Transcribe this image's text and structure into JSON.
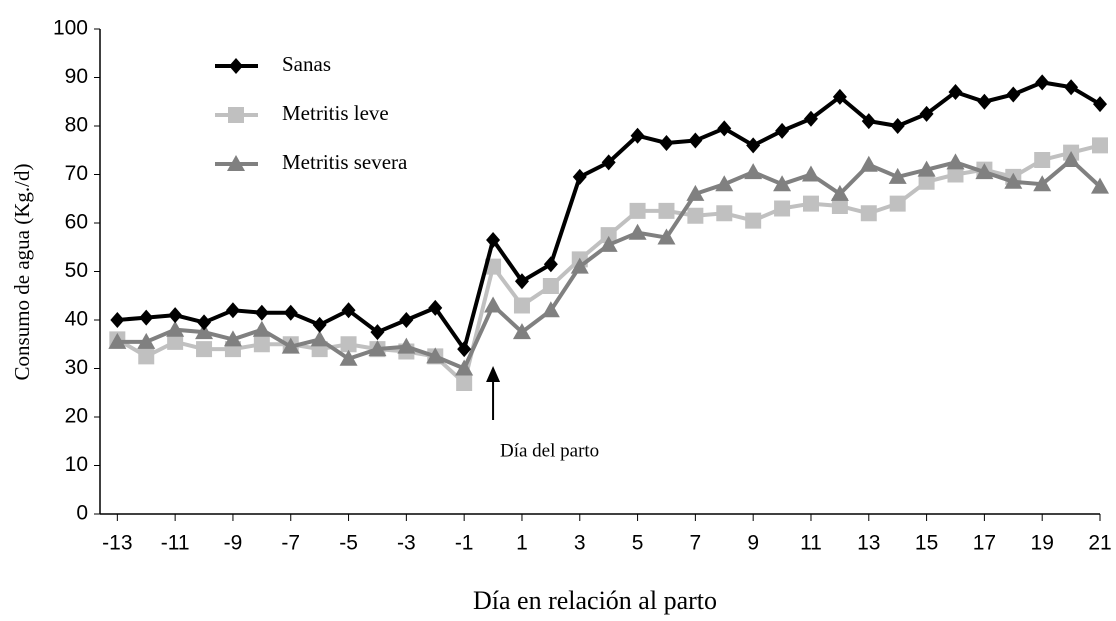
{
  "chart_data": {
    "type": "line",
    "y_label": "Consumo de agua (Kg./d)",
    "x_label": "Día en relación al parto",
    "annotation": "Día del parto",
    "x": [
      -13,
      -12,
      -11,
      -10,
      -9,
      -8,
      -7,
      -6,
      -5,
      -4,
      -3,
      -2,
      -1,
      0,
      1,
      2,
      3,
      4,
      5,
      6,
      7,
      8,
      9,
      10,
      11,
      12,
      13,
      14,
      15,
      16,
      17,
      18,
      19,
      20,
      21
    ],
    "series": [
      {
        "name": "Sanas",
        "color": "#000000",
        "marker": "diamond",
        "values": [
          40,
          40.5,
          41,
          39.5,
          42,
          41.5,
          41.5,
          39,
          42,
          37.5,
          40,
          42.5,
          34,
          56.5,
          48,
          51.5,
          69.5,
          72.5,
          78,
          76.5,
          77,
          79.5,
          76,
          79,
          81.5,
          86,
          81,
          80,
          82.5,
          87,
          85,
          86.5,
          89,
          88,
          84.5
        ]
      },
      {
        "name": "Metritis leve",
        "color": "#c0c0c0",
        "marker": "square",
        "values": [
          36,
          32.5,
          35.5,
          34,
          34,
          35,
          35,
          34,
          35,
          34,
          33.5,
          32.5,
          27,
          51,
          43,
          47,
          52.5,
          57.5,
          62.5,
          62.5,
          61.5,
          62,
          60.5,
          63,
          64,
          63.5,
          62,
          64,
          68.5,
          70,
          71,
          69.5,
          73,
          74.5,
          76
        ]
      },
      {
        "name": "Metritis severa",
        "color": "#808080",
        "marker": "triangle",
        "values": [
          35.5,
          35.5,
          38,
          37.5,
          36,
          38,
          34.5,
          36,
          32,
          34,
          34.5,
          32.5,
          30,
          43,
          37.5,
          42,
          51,
          55.5,
          58,
          57,
          66,
          68,
          70.5,
          68,
          70,
          66,
          72,
          69.5,
          71,
          72.5,
          70.5,
          68.5,
          68,
          73,
          67.5
        ]
      }
    ],
    "xlim": [
      -13.6,
      21
    ],
    "xticks": [
      -13,
      -11,
      -9,
      -7,
      -5,
      -3,
      -1,
      1,
      3,
      5,
      7,
      9,
      11,
      13,
      15,
      17,
      19,
      21
    ],
    "ylim": [
      0,
      100
    ],
    "yticks": [
      0,
      10,
      20,
      30,
      40,
      50,
      60,
      70,
      80,
      90,
      100
    ]
  }
}
